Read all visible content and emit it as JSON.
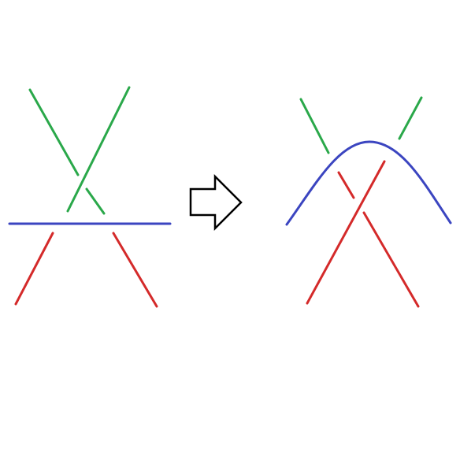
{
  "diagram": {
    "colors": {
      "green": "#2aa84a",
      "blue": "#3b45c0",
      "red": "#d42a2a",
      "arrow_outline": "#000000",
      "background": "#ffffff"
    },
    "left_panel": {
      "description_strands": [
        "green-crossing",
        "blue-horizontal",
        "red-lower-pair"
      ]
    },
    "right_panel": {
      "description_strands": [
        "green-upper-pair",
        "blue-arch",
        "red-crossing"
      ]
    },
    "arrow": {
      "direction": "right"
    }
  }
}
